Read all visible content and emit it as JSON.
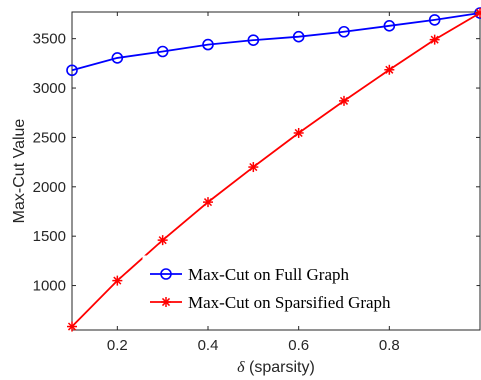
{
  "chart_data": {
    "type": "line",
    "xlabel_symbol": "δ",
    "xlabel_rest": " (sparsity)",
    "ylabel": "Max-Cut Value",
    "xlim": [
      0.1,
      1.0
    ],
    "ylim": [
      550,
      3770
    ],
    "xticks": [
      0.2,
      0.4,
      0.6,
      0.8
    ],
    "xtick_labels": [
      "0.2",
      "0.4",
      "0.6",
      "0.8"
    ],
    "yticks": [
      1000,
      1500,
      2000,
      2500,
      3000,
      3500
    ],
    "ytick_labels": [
      "1000",
      "1500",
      "2000",
      "2500",
      "3000",
      "3500"
    ],
    "grid": false,
    "legend_position": "bottom-right",
    "x": [
      0.1,
      0.2,
      0.3,
      0.4,
      0.5,
      0.6,
      0.7,
      0.8,
      0.9,
      1.0
    ],
    "series": [
      {
        "name": "Max-Cut on Full Graph",
        "color": "#0000ff",
        "marker": "circle",
        "values": [
          3180,
          3305,
          3370,
          3440,
          3485,
          3520,
          3570,
          3630,
          3690,
          3760
        ]
      },
      {
        "name": "Max-Cut on Sparsified Graph",
        "color": "#ff0000",
        "marker": "asterisk",
        "values": [
          585,
          1050,
          1460,
          1845,
          2200,
          2545,
          2870,
          3185,
          3490,
          3760
        ]
      }
    ]
  }
}
